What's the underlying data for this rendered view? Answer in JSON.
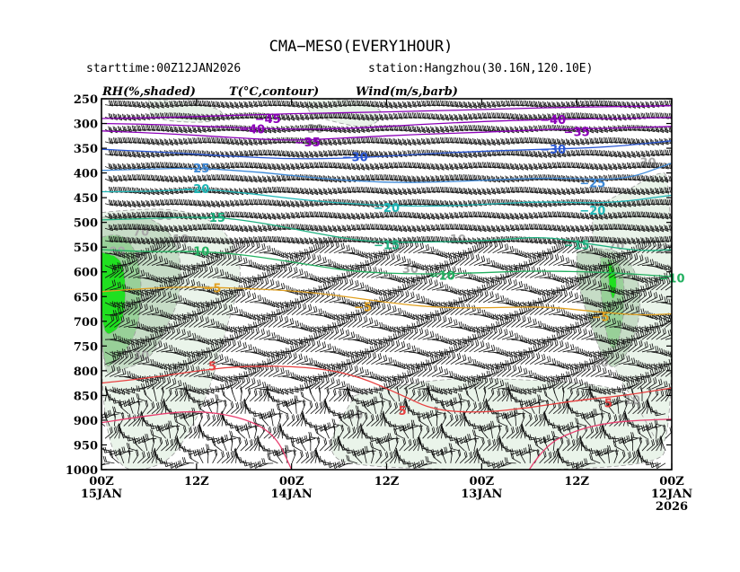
{
  "header": {
    "title": "CMA−MESO(EVERY1HOUR)",
    "starttime": "starttime:00Z12JAN2026",
    "station": "station:Hangzhou(30.16N,120.10E)"
  },
  "legend": {
    "rh": "RH(%,shaded)",
    "temp": "T(°C,contour)",
    "wind": "Wind(m/s,barb)"
  },
  "chart_data": {
    "type": "heatmap",
    "y_levels": [
      250,
      300,
      350,
      400,
      450,
      500,
      550,
      600,
      650,
      700,
      750,
      800,
      850,
      900,
      950,
      1000
    ],
    "ylim": [
      250,
      1000
    ],
    "y_inverted": true,
    "x_ticks": [
      {
        "top": "00Z",
        "bottom": "15JAN",
        "third": ""
      },
      {
        "top": "12Z",
        "bottom": "",
        "third": ""
      },
      {
        "top": "00Z",
        "bottom": "14JAN",
        "third": ""
      },
      {
        "top": "12Z",
        "bottom": "",
        "third": ""
      },
      {
        "top": "00Z",
        "bottom": "13JAN",
        "third": ""
      },
      {
        "top": "12Z",
        "bottom": "",
        "third": ""
      },
      {
        "top": "00Z",
        "bottom": "12JAN",
        "third": "2026"
      }
    ],
    "x_hours_before_end": [
      72,
      60,
      48,
      36,
      24,
      12,
      0
    ],
    "temperature_contours": [
      {
        "value": -45,
        "color": "#8b00b8",
        "points": [
          [
            72,
            290
          ],
          [
            64,
            288
          ],
          [
            56,
            284
          ],
          [
            48,
            280
          ],
          [
            40,
            278
          ],
          [
            32,
            275
          ],
          [
            24,
            272
          ],
          [
            16,
            268
          ],
          [
            8,
            266
          ],
          [
            0,
            264
          ]
        ],
        "labels": [
          [
            51,
            290
          ]
        ]
      },
      {
        "value": -40,
        "color": "#8b00b8",
        "points": [
          [
            72,
            300
          ],
          [
            64,
            302
          ],
          [
            56,
            308
          ],
          [
            48,
            312
          ],
          [
            40,
            310
          ],
          [
            32,
            302
          ],
          [
            24,
            296
          ],
          [
            16,
            292
          ],
          [
            8,
            290
          ],
          [
            0,
            288
          ]
        ],
        "labels": [
          [
            53,
            311
          ],
          [
            15,
            292
          ]
        ]
      },
      {
        "value": -35,
        "color": "#8b00b8",
        "points": [
          [
            72,
            315
          ],
          [
            64,
            320
          ],
          [
            56,
            328
          ],
          [
            48,
            335
          ],
          [
            40,
            328
          ],
          [
            32,
            322
          ],
          [
            24,
            318
          ],
          [
            16,
            312
          ],
          [
            8,
            310
          ],
          [
            0,
            306
          ]
        ],
        "labels": [
          [
            46,
            337
          ],
          [
            12,
            316
          ]
        ]
      },
      {
        "value": -30,
        "color": "#2a57d4",
        "points": [
          [
            72,
            352
          ],
          [
            64,
            358
          ],
          [
            56,
            366
          ],
          [
            48,
            372
          ],
          [
            40,
            370
          ],
          [
            32,
            362
          ],
          [
            24,
            356
          ],
          [
            16,
            352
          ],
          [
            8,
            348
          ],
          [
            0,
            335
          ]
        ],
        "labels": [
          [
            40,
            367
          ],
          [
            15,
            352
          ]
        ]
      },
      {
        "value": -25,
        "color": "#3f8ad8",
        "points": [
          [
            72,
            395
          ],
          [
            66,
            392
          ],
          [
            60,
            390
          ],
          [
            52,
            398
          ],
          [
            44,
            412
          ],
          [
            36,
            420
          ],
          [
            28,
            418
          ],
          [
            20,
            412
          ],
          [
            14,
            410
          ],
          [
            6,
            415
          ],
          [
            0,
            380
          ]
        ],
        "labels": [
          [
            60,
            390
          ],
          [
            10,
            420
          ]
        ]
      },
      {
        "value": -20,
        "color": "#1fb6b6",
        "points": [
          [
            72,
            438
          ],
          [
            66,
            438
          ],
          [
            60,
            432
          ],
          [
            54,
            440
          ],
          [
            46,
            456
          ],
          [
            38,
            465
          ],
          [
            30,
            468
          ],
          [
            22,
            462
          ],
          [
            16,
            458
          ],
          [
            8,
            462
          ],
          [
            0,
            445
          ]
        ],
        "labels": [
          [
            60,
            432
          ],
          [
            36,
            470
          ],
          [
            10,
            475
          ]
        ]
      },
      {
        "value": -15,
        "color": "#1fb080",
        "points": [
          [
            72,
            495
          ],
          [
            66,
            492
          ],
          [
            58,
            488
          ],
          [
            52,
            500
          ],
          [
            44,
            525
          ],
          [
            38,
            540
          ],
          [
            30,
            540
          ],
          [
            22,
            536
          ],
          [
            16,
            528
          ],
          [
            10,
            545
          ],
          [
            4,
            558
          ],
          [
            0,
            555
          ]
        ],
        "labels": [
          [
            58,
            490
          ],
          [
            36,
            545
          ],
          [
            12,
            545
          ]
        ]
      },
      {
        "value": -10,
        "color": "#22b060",
        "points": [
          [
            72,
            555
          ],
          [
            66,
            560
          ],
          [
            60,
            558
          ],
          [
            54,
            565
          ],
          [
            46,
            585
          ],
          [
            40,
            600
          ],
          [
            32,
            605
          ],
          [
            24,
            602
          ],
          [
            18,
            598
          ],
          [
            10,
            600
          ],
          [
            4,
            605
          ],
          [
            0,
            610
          ]
        ],
        "labels": [
          [
            60,
            558
          ],
          [
            29,
            607
          ],
          [
            0,
            612
          ]
        ]
      },
      {
        "value": -5,
        "color": "#e0a020",
        "points": [
          [
            72,
            640
          ],
          [
            64,
            630
          ],
          [
            56,
            632
          ],
          [
            48,
            638
          ],
          [
            42,
            648
          ],
          [
            36,
            662
          ],
          [
            30,
            672
          ],
          [
            24,
            673
          ],
          [
            16,
            670
          ],
          [
            10,
            680
          ],
          [
            4,
            688
          ],
          [
            0,
            685
          ]
        ],
        "labels": [
          [
            58,
            632
          ],
          [
            39,
            670
          ],
          [
            9,
            690
          ]
        ]
      },
      {
        "value": 5,
        "color": "#e84040",
        "points": [
          [
            72,
            825
          ],
          [
            66,
            815
          ],
          [
            60,
            800
          ],
          [
            54,
            790
          ],
          [
            46,
            792
          ],
          [
            40,
            808
          ],
          [
            34,
            850
          ],
          [
            30,
            880
          ],
          [
            24,
            885
          ],
          [
            18,
            875
          ],
          [
            12,
            860
          ],
          [
            6,
            850
          ],
          [
            2,
            840
          ],
          [
            0,
            835
          ]
        ],
        "labels": [
          [
            58,
            790
          ],
          [
            34,
            880
          ],
          [
            8,
            865
          ]
        ]
      },
      {
        "value": 10,
        "color": "#e84070",
        "points": [
          [
            72,
            905
          ],
          [
            66,
            890
          ],
          [
            60,
            880
          ],
          [
            54,
            895
          ],
          [
            50,
            930
          ],
          [
            48,
            1000
          ]
        ],
        "labels": []
      },
      {
        "value": 10,
        "color": "#e84070",
        "points": [
          [
            18,
            1000
          ],
          [
            16,
            950
          ],
          [
            12,
            920
          ],
          [
            8,
            905
          ],
          [
            4,
            900
          ],
          [
            0,
            898
          ]
        ],
        "labels": []
      }
    ],
    "rh_regions": [
      {
        "level": 30,
        "color": "#eaf4ea",
        "points": [
          [
            72,
            480
          ],
          [
            66,
            470
          ],
          [
            60,
            480
          ],
          [
            56,
            520
          ],
          [
            54,
            600
          ],
          [
            56,
            700
          ],
          [
            58,
            820
          ],
          [
            60,
            900
          ],
          [
            64,
            1000
          ],
          [
            72,
            1000
          ]
        ]
      },
      {
        "level": 30,
        "color": "#eaf4ea",
        "points": [
          [
            40,
            850
          ],
          [
            32,
            820
          ],
          [
            24,
            815
          ],
          [
            16,
            820
          ],
          [
            8,
            830
          ],
          [
            4,
            860
          ],
          [
            2,
            920
          ],
          [
            0,
            1000
          ],
          [
            40,
            1000
          ],
          [
            44,
            960
          ]
        ]
      },
      {
        "level": 30,
        "color": "#eaf4ea",
        "points": [
          [
            10,
            470
          ],
          [
            6,
            440
          ],
          [
            2,
            400
          ],
          [
            0,
            400
          ],
          [
            0,
            1000
          ],
          [
            4,
            880
          ],
          [
            8,
            780
          ],
          [
            10,
            600
          ]
        ]
      },
      {
        "level": 30,
        "color": "#eaf4ea",
        "points": [
          [
            46,
            250
          ],
          [
            40,
            250
          ],
          [
            36,
            275
          ],
          [
            38,
            310
          ],
          [
            42,
            300
          ],
          [
            46,
            280
          ]
        ]
      },
      {
        "level": 30,
        "color": "#eaf4ea",
        "points": [
          [
            66,
            250
          ],
          [
            58,
            260
          ],
          [
            56,
            290
          ],
          [
            60,
            300
          ],
          [
            66,
            290
          ]
        ]
      },
      {
        "level": 50,
        "color": "#c6dcc6",
        "points": [
          [
            72,
            490
          ],
          [
            68,
            480
          ],
          [
            64,
            505
          ],
          [
            62,
            560
          ],
          [
            62,
            650
          ],
          [
            64,
            720
          ],
          [
            66,
            780
          ],
          [
            70,
            800
          ],
          [
            72,
            810
          ]
        ]
      },
      {
        "level": 50,
        "color": "#c6dcc6",
        "points": [
          [
            12,
            560
          ],
          [
            10,
            550
          ],
          [
            6,
            560
          ],
          [
            4,
            620
          ],
          [
            4,
            700
          ],
          [
            6,
            780
          ],
          [
            8,
            800
          ],
          [
            10,
            720
          ],
          [
            12,
            620
          ]
        ]
      },
      {
        "level": 70,
        "color": "#98d098",
        "points": [
          [
            72,
            530
          ],
          [
            70,
            520
          ],
          [
            68,
            545
          ],
          [
            67,
            600
          ],
          [
            67,
            680
          ],
          [
            68,
            740
          ],
          [
            70,
            780
          ],
          [
            72,
            800
          ]
        ]
      },
      {
        "level": 70,
        "color": "#98d098",
        "points": [
          [
            9,
            570
          ],
          [
            7,
            570
          ],
          [
            6,
            610
          ],
          [
            6,
            690
          ],
          [
            7,
            760
          ],
          [
            8,
            750
          ],
          [
            9,
            650
          ]
        ]
      },
      {
        "level": 90,
        "color": "#20e020",
        "points": [
          [
            72,
            560
          ],
          [
            70,
            565
          ],
          [
            69,
            600
          ],
          [
            69,
            680
          ],
          [
            70,
            720
          ],
          [
            72,
            730
          ]
        ]
      },
      {
        "level": 90,
        "color": "#20e020",
        "points": [
          [
            8,
            575
          ],
          [
            7,
            600
          ],
          [
            7,
            640
          ],
          [
            7.5,
            660
          ],
          [
            8,
            620
          ]
        ]
      }
    ],
    "rh_labels": [
      {
        "value": "90",
        "x": 70,
        "y": 560
      },
      {
        "value": "70",
        "x": 67,
        "y": 520
      },
      {
        "value": "50",
        "x": 64,
        "y": 488
      },
      {
        "value": "10",
        "x": 62,
        "y": 535
      },
      {
        "value": "30",
        "x": 67,
        "y": 770
      },
      {
        "value": "30",
        "x": 45,
        "y": 312
      },
      {
        "value": "30",
        "x": 33,
        "y": 595
      },
      {
        "value": "30",
        "x": 40,
        "y": 890
      },
      {
        "value": "10",
        "x": 27,
        "y": 535
      },
      {
        "value": "70",
        "x": 7,
        "y": 548
      },
      {
        "value": "50",
        "x": 1,
        "y": 555
      },
      {
        "value": "30",
        "x": 3,
        "y": 380
      },
      {
        "value": "60",
        "x": 9,
        "y": 785
      },
      {
        "value": "10",
        "x": 5,
        "y": 860
      }
    ],
    "wind_barbs": "rows at every 25 hPa, columns every ~1.2 h; westerly/northwesterly, strongest aloft"
  }
}
